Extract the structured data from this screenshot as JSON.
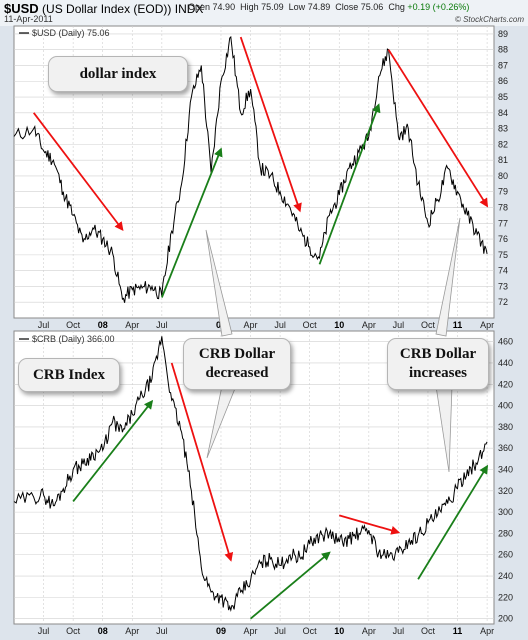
{
  "header": {
    "symbol": "$USD",
    "name": "(US Dollar Index (EOD))",
    "exchange": "INDX",
    "date": "11-Apr-2011",
    "open_label": "Open",
    "open": "74.90",
    "high_label": "High",
    "high": "75.09",
    "low_label": "Low",
    "low": "74.89",
    "close_label": "Close",
    "close": "75.06",
    "chg_label": "Chg",
    "chg": "+0.19 (+0.26%)",
    "copyright": "© StockCharts.com"
  },
  "colors": {
    "price_line": "#000000",
    "up_arrow": "#1a7f1a",
    "down_arrow": "#ee1111",
    "panel_bg": "#ffffff",
    "page_bg": "#dde4ec",
    "grid": "#d0d0d0"
  },
  "annotations": {
    "dollar_index": "dollar index",
    "crb_index": "CRB Index",
    "crb_dollar_decreased": "CRB Dollar decreased",
    "crb_dollar_increases": "CRB Dollar increases"
  },
  "chart_data": [
    {
      "type": "line",
      "legend": "$USD (Daily) 75.06",
      "x_ticks": [
        "Jul",
        "Oct",
        "08",
        "Apr",
        "Jul",
        "09",
        "Apr",
        "Jul",
        "Oct",
        "10",
        "Apr",
        "Jul",
        "Oct",
        "11",
        "Apr"
      ],
      "y_ticks": [
        72,
        73,
        74,
        75,
        76,
        77,
        78,
        79,
        80,
        81,
        82,
        83,
        84,
        85,
        86,
        87,
        88,
        89
      ],
      "ylim": [
        71,
        89.5
      ],
      "grid": true,
      "series": [
        {
          "name": "$USD",
          "x": [
            "2007-04",
            "2007-06",
            "2007-07",
            "2007-08",
            "2007-09",
            "2007-10",
            "2007-11",
            "2007-12",
            "2008-01",
            "2008-02",
            "2008-03",
            "2008-04",
            "2008-05",
            "2008-06",
            "2008-07",
            "2008-08",
            "2008-09",
            "2008-10",
            "2008-11",
            "2008-12",
            "2009-01",
            "2009-02",
            "2009-03",
            "2009-04",
            "2009-05",
            "2009-06",
            "2009-07",
            "2009-08",
            "2009-09",
            "2009-10",
            "2009-11",
            "2009-12",
            "2010-01",
            "2010-02",
            "2010-03",
            "2010-04",
            "2010-05",
            "2010-06",
            "2010-07",
            "2010-08",
            "2010-09",
            "2010-10",
            "2010-11",
            "2010-12",
            "2011-01",
            "2011-02",
            "2011-03",
            "2011-04"
          ],
          "values": [
            82.5,
            83.0,
            81.6,
            81.0,
            79.0,
            77.5,
            75.8,
            76.7,
            76.0,
            75.1,
            72.2,
            72.8,
            72.9,
            73.0,
            72.4,
            76.5,
            79.5,
            85.0,
            87.0,
            80.2,
            86.0,
            88.8,
            84.0,
            85.5,
            80.5,
            80.0,
            79.0,
            78.0,
            76.5,
            75.5,
            74.8,
            77.5,
            78.8,
            80.5,
            81.5,
            82.5,
            86.3,
            88.0,
            82.5,
            83.0,
            79.5,
            77.0,
            78.5,
            80.5,
            79.0,
            77.5,
            76.3,
            75.06
          ]
        }
      ]
    },
    {
      "type": "line",
      "legend": "$CRB (Daily) 366.00",
      "x_ticks": [
        "Jul",
        "Oct",
        "08",
        "Apr",
        "Jul",
        "09",
        "Apr",
        "Jul",
        "Oct",
        "10",
        "Apr",
        "Jul",
        "Oct",
        "11",
        "Apr"
      ],
      "y_ticks": [
        200,
        220,
        240,
        260,
        280,
        300,
        320,
        340,
        360,
        380,
        400,
        420,
        440,
        460
      ],
      "ylim": [
        195,
        470
      ],
      "grid": true,
      "series": [
        {
          "name": "$CRB",
          "x": [
            "2007-04",
            "2007-06",
            "2007-07",
            "2007-08",
            "2007-09",
            "2007-10",
            "2007-11",
            "2007-12",
            "2008-01",
            "2008-02",
            "2008-03",
            "2008-04",
            "2008-05",
            "2008-06",
            "2008-07",
            "2008-08",
            "2008-09",
            "2008-10",
            "2008-11",
            "2008-12",
            "2009-01",
            "2009-02",
            "2009-03",
            "2009-04",
            "2009-05",
            "2009-06",
            "2009-07",
            "2009-08",
            "2009-09",
            "2009-10",
            "2009-11",
            "2009-12",
            "2010-01",
            "2010-02",
            "2010-03",
            "2010-04",
            "2010-05",
            "2010-06",
            "2010-07",
            "2010-08",
            "2010-09",
            "2010-10",
            "2010-11",
            "2010-12",
            "2011-01",
            "2011-02",
            "2011-03",
            "2011-04"
          ],
          "values": [
            310,
            314,
            316,
            306,
            322,
            340,
            345,
            355,
            358,
            385,
            375,
            392,
            410,
            425,
            465,
            405,
            375,
            320,
            248,
            225,
            220,
            208,
            225,
            236,
            252,
            256,
            250,
            260,
            258,
            270,
            278,
            280,
            272,
            275,
            280,
            283,
            262,
            258,
            262,
            272,
            278,
            290,
            298,
            308,
            322,
            340,
            345,
            366
          ]
        }
      ]
    }
  ]
}
